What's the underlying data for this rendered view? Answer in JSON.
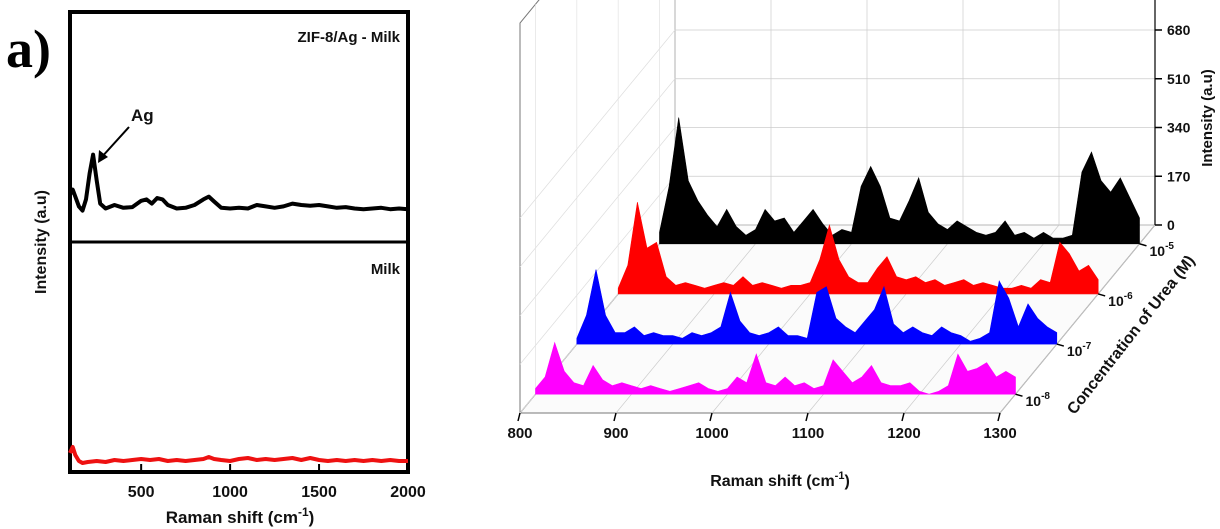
{
  "chart_data": [
    {
      "panel": "a)",
      "type": "line",
      "xlabel": "Raman shift (cm",
      "xlabel_sup": "-1",
      "xlabel_end": ")",
      "ylabel": "Intensity (a.u)",
      "xlim": [
        100,
        2000
      ],
      "xticks": [
        500,
        1000,
        1500,
        2000
      ],
      "grid": false,
      "stacked_panels": [
        {
          "label": "ZIF-8/Ag - Milk",
          "annotation": "Ag",
          "annotation_at_x": 230,
          "color": "#000000",
          "x": [
            100,
            115,
            130,
            150,
            170,
            190,
            210,
            230,
            250,
            270,
            300,
            350,
            400,
            450,
            500,
            530,
            560,
            590,
            620,
            650,
            700,
            750,
            800,
            850,
            880,
            910,
            950,
            1000,
            1050,
            1100,
            1150,
            1200,
            1250,
            1300,
            1350,
            1400,
            1450,
            1500,
            1550,
            1600,
            1650,
            1700,
            1750,
            1800,
            1850,
            1900,
            1950,
            2000
          ],
          "y": [
            0.25,
            0.32,
            0.22,
            0.08,
            0.02,
            0.18,
            0.55,
            0.82,
            0.45,
            0.12,
            0.05,
            0.1,
            0.06,
            0.07,
            0.16,
            0.18,
            0.12,
            0.2,
            0.18,
            0.1,
            0.05,
            0.06,
            0.1,
            0.18,
            0.22,
            0.15,
            0.06,
            0.05,
            0.06,
            0.05,
            0.1,
            0.08,
            0.06,
            0.08,
            0.12,
            0.1,
            0.09,
            0.1,
            0.08,
            0.06,
            0.07,
            0.05,
            0.04,
            0.05,
            0.06,
            0.04,
            0.05,
            0.04
          ]
        },
        {
          "label": "Milk",
          "color": "#ee1111",
          "x": [
            100,
            115,
            130,
            150,
            170,
            200,
            250,
            300,
            350,
            400,
            450,
            500,
            550,
            600,
            650,
            700,
            750,
            800,
            850,
            880,
            910,
            950,
            1000,
            1050,
            1100,
            1150,
            1200,
            1250,
            1300,
            1350,
            1400,
            1450,
            1500,
            1550,
            1600,
            1650,
            1700,
            1750,
            1800,
            1850,
            1900,
            1950,
            2000
          ],
          "y": [
            0.12,
            0.18,
            0.1,
            0.04,
            0.02,
            0.03,
            0.04,
            0.03,
            0.05,
            0.04,
            0.05,
            0.06,
            0.05,
            0.06,
            0.04,
            0.05,
            0.04,
            0.05,
            0.06,
            0.08,
            0.06,
            0.05,
            0.04,
            0.06,
            0.07,
            0.05,
            0.06,
            0.05,
            0.06,
            0.07,
            0.05,
            0.07,
            0.05,
            0.04,
            0.05,
            0.04,
            0.05,
            0.04,
            0.05,
            0.04,
            0.05,
            0.04,
            0.04
          ]
        }
      ]
    },
    {
      "panel": "b)",
      "type": "area",
      "projection": "3d-waterfall",
      "xlabel": "Raman shift (cm",
      "xlabel_sup": "-1",
      "xlabel_end": ")",
      "ylabel": "Intensity (a.u)",
      "zlabel": "Concentration of Urea (M)",
      "xlim": [
        800,
        1300
      ],
      "xticks": [
        800,
        900,
        1000,
        1100,
        1200,
        1300
      ],
      "zticks": [
        0,
        170,
        340,
        510,
        680
      ],
      "zlim": [
        0,
        680
      ],
      "x": [
        800,
        810,
        820,
        830,
        840,
        850,
        860,
        870,
        880,
        890,
        900,
        910,
        920,
        930,
        940,
        950,
        960,
        970,
        980,
        990,
        1000,
        1010,
        1020,
        1030,
        1040,
        1050,
        1060,
        1070,
        1080,
        1090,
        1100,
        1110,
        1120,
        1130,
        1140,
        1150,
        1160,
        1170,
        1180,
        1190,
        1200,
        1210,
        1220,
        1230,
        1240,
        1250,
        1260,
        1270,
        1280,
        1290,
        1300
      ],
      "series": [
        {
          "name": "10",
          "exp": "-8",
          "color": "#ff00ff",
          "values": [
            20,
            60,
            180,
            80,
            40,
            30,
            100,
            50,
            30,
            40,
            30,
            20,
            30,
            20,
            10,
            20,
            30,
            40,
            20,
            10,
            20,
            60,
            40,
            140,
            40,
            30,
            60,
            30,
            40,
            20,
            30,
            120,
            80,
            40,
            60,
            100,
            40,
            30,
            30,
            40,
            10,
            0,
            10,
            30,
            140,
            80,
            90,
            110,
            60,
            80,
            60
          ]
        },
        {
          "name": "10",
          "exp": "-7",
          "color": "#0000ff",
          "values": [
            20,
            100,
            260,
            100,
            40,
            40,
            60,
            30,
            40,
            30,
            30,
            20,
            40,
            30,
            40,
            60,
            180,
            80,
            40,
            30,
            40,
            60,
            30,
            30,
            20,
            180,
            200,
            90,
            60,
            40,
            80,
            120,
            200,
            70,
            40,
            60,
            40,
            30,
            60,
            40,
            30,
            10,
            20,
            40,
            220,
            160,
            60,
            140,
            90,
            60,
            40
          ]
        },
        {
          "name": "10",
          "exp": "-6",
          "color": "#ff0000",
          "values": [
            20,
            100,
            320,
            160,
            180,
            60,
            30,
            40,
            30,
            20,
            30,
            40,
            30,
            60,
            30,
            40,
            30,
            20,
            30,
            30,
            40,
            120,
            240,
            120,
            60,
            40,
            40,
            90,
            130,
            60,
            50,
            60,
            40,
            50,
            30,
            40,
            50,
            30,
            40,
            30,
            20,
            20,
            30,
            20,
            50,
            40,
            180,
            140,
            80,
            100,
            50
          ]
        },
        {
          "name": "10",
          "exp": "-5",
          "color": "#000000",
          "values": [
            40,
            200,
            440,
            220,
            150,
            100,
            60,
            120,
            60,
            30,
            50,
            120,
            80,
            90,
            40,
            80,
            120,
            70,
            30,
            50,
            40,
            200,
            270,
            200,
            90,
            80,
            150,
            230,
            110,
            70,
            50,
            80,
            60,
            40,
            30,
            40,
            80,
            30,
            40,
            20,
            40,
            20,
            20,
            30,
            250,
            320,
            220,
            180,
            230,
            160,
            90
          ]
        }
      ]
    }
  ]
}
